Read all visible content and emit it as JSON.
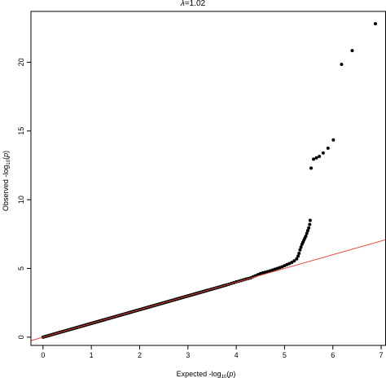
{
  "chart_data": {
    "type": "scatter",
    "title_prefix": "λ",
    "title_value": "=1.02",
    "xlabel_prefix": "Expected  -log",
    "xlabel_sub": "10",
    "xlabel_suffix": "(",
    "xlabel_var": "p",
    "xlabel_close": ")",
    "ylabel_prefix": "Observed  -log",
    "ylabel_sub": "10",
    "ylabel_suffix": "(",
    "ylabel_var": "p",
    "ylabel_close": ")",
    "xlim": [
      -0.25,
      7.1
    ],
    "ylim": [
      -0.6,
      23.7
    ],
    "x_ticks": [
      0,
      1,
      2,
      3,
      4,
      5,
      6,
      7
    ],
    "y_ticks": [
      0,
      5,
      10,
      15,
      20
    ],
    "reference_line": {
      "slope": 1,
      "intercept": 0,
      "color": "#e8473a"
    },
    "point_color": "#000000",
    "null_segment": {
      "x_start": 0.0,
      "x_end": 3.8,
      "slope": 1.0
    },
    "points": [
      [
        3.85,
        3.85
      ],
      [
        3.9,
        3.91
      ],
      [
        3.95,
        3.96
      ],
      [
        4.0,
        4.02
      ],
      [
        4.05,
        4.07
      ],
      [
        4.1,
        4.12
      ],
      [
        4.15,
        4.17
      ],
      [
        4.2,
        4.22
      ],
      [
        4.25,
        4.27
      ],
      [
        4.3,
        4.32
      ],
      [
        4.35,
        4.4
      ],
      [
        4.4,
        4.47
      ],
      [
        4.45,
        4.55
      ],
      [
        4.5,
        4.62
      ],
      [
        4.55,
        4.68
      ],
      [
        4.6,
        4.72
      ],
      [
        4.65,
        4.77
      ],
      [
        4.7,
        4.82
      ],
      [
        4.75,
        4.88
      ],
      [
        4.8,
        4.94
      ],
      [
        4.85,
        5.0
      ],
      [
        4.9,
        5.06
      ],
      [
        4.95,
        5.12
      ],
      [
        5.0,
        5.2
      ],
      [
        5.05,
        5.28
      ],
      [
        5.1,
        5.36
      ],
      [
        5.15,
        5.44
      ],
      [
        5.2,
        5.55
      ],
      [
        5.25,
        5.7
      ],
      [
        5.28,
        5.9
      ],
      [
        5.3,
        6.1
      ],
      [
        5.32,
        6.35
      ],
      [
        5.34,
        6.55
      ],
      [
        5.36,
        6.75
      ],
      [
        5.38,
        6.9
      ],
      [
        5.4,
        7.05
      ],
      [
        5.42,
        7.2
      ],
      [
        5.44,
        7.35
      ],
      [
        5.46,
        7.55
      ],
      [
        5.48,
        7.75
      ],
      [
        5.5,
        7.95
      ],
      [
        5.52,
        8.2
      ],
      [
        5.53,
        8.5
      ],
      [
        5.55,
        12.3
      ],
      [
        5.6,
        12.95
      ],
      [
        5.66,
        13.05
      ],
      [
        5.72,
        13.15
      ],
      [
        5.8,
        13.4
      ],
      [
        5.9,
        13.75
      ],
      [
        6.01,
        14.35
      ],
      [
        6.18,
        19.85
      ],
      [
        6.4,
        20.85
      ],
      [
        6.88,
        22.8
      ]
    ]
  }
}
